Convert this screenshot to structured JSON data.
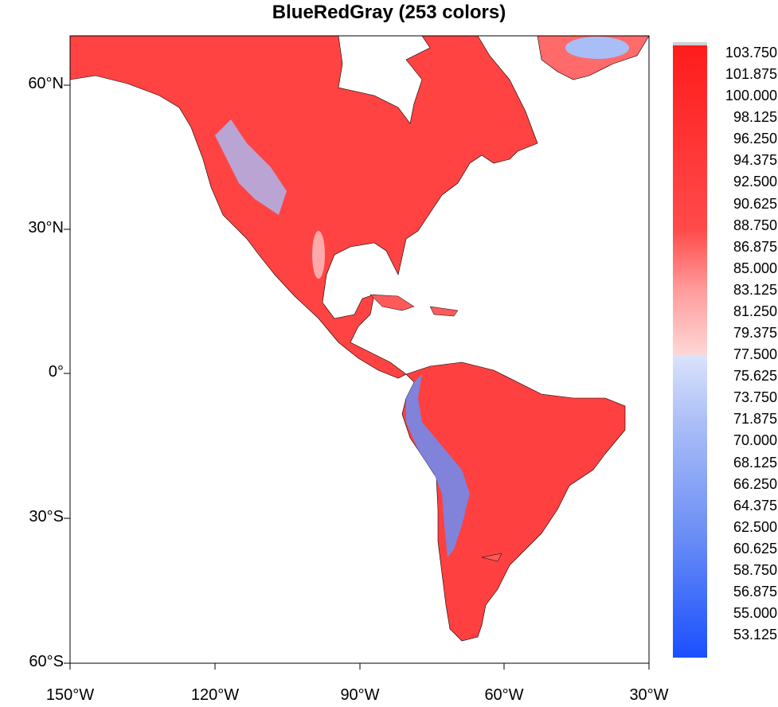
{
  "title": "BlueRedGray (253 colors)",
  "y_axis": [
    "60°N",
    "30°N",
    "0°",
    "30°S",
    "60°S"
  ],
  "x_axis": [
    "150°W",
    "120°W",
    "90°W",
    "60°W",
    "30°W"
  ],
  "colorbar": {
    "labels": [
      "103.750",
      "101.875",
      "100.000",
      "98.125",
      "96.250",
      "94.375",
      "92.500",
      "90.625",
      "88.750",
      "86.875",
      "85.000",
      "83.125",
      "81.250",
      "79.375",
      "77.500",
      "75.625",
      "73.750",
      "71.875",
      "70.000",
      "68.125",
      "66.250",
      "64.375",
      "62.500",
      "60.625",
      "58.750",
      "56.875",
      "55.000",
      "53.125"
    ],
    "min_color": "#1a4fff",
    "max_color": "#ff1c1c",
    "missing_color": "#d0d0d0"
  }
}
